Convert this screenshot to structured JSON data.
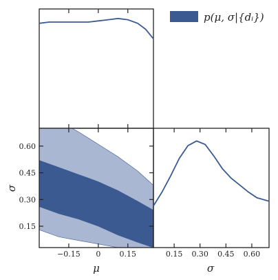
{
  "chart_data": [
    {
      "type": "line",
      "panel": "marginal-mu",
      "x_param": "mu",
      "xlim": [
        -0.3,
        0.28
      ],
      "ylim": [
        0,
        1.0
      ],
      "x": [
        -0.3,
        -0.25,
        -0.2,
        -0.15,
        -0.1,
        -0.05,
        0.0,
        0.05,
        0.1,
        0.15,
        0.2,
        0.24,
        0.28
      ],
      "y": [
        0.88,
        0.89,
        0.89,
        0.89,
        0.89,
        0.89,
        0.9,
        0.91,
        0.92,
        0.91,
        0.88,
        0.83,
        0.75
      ],
      "color": "#3b5a92"
    },
    {
      "type": "area",
      "panel": "joint-mu-sigma",
      "xlim": [
        -0.3,
        0.28
      ],
      "ylim": [
        0.03,
        0.7
      ],
      "xticks": [
        "−0.15",
        "0",
        "0.15"
      ],
      "xtick_values": [
        -0.15,
        0.0,
        0.15
      ],
      "yticks": [
        "0.15",
        "0.30",
        "0.45",
        "0.60"
      ],
      "ytick_values": [
        0.15,
        0.3,
        0.45,
        0.6
      ],
      "xlabel": "μ",
      "ylabel": "σ",
      "regions": [
        {
          "level": "outer",
          "color": "#a9b7d2",
          "upper": [
            [
              -0.3,
              0.78
            ],
            [
              -0.2,
              0.74
            ],
            [
              -0.1,
              0.68
            ],
            [
              0.0,
              0.61
            ],
            [
              0.1,
              0.54
            ],
            [
              0.2,
              0.46
            ],
            [
              0.28,
              0.38
            ]
          ],
          "lower": [
            [
              -0.3,
              0.13
            ],
            [
              -0.2,
              0.09
            ],
            [
              -0.1,
              0.07
            ],
            [
              0.0,
              0.05
            ],
            [
              0.1,
              0.03
            ],
            [
              0.15,
              0.02
            ]
          ]
        },
        {
          "level": "inner",
          "color": "#3b5a92",
          "upper": [
            [
              -0.3,
              0.52
            ],
            [
              -0.2,
              0.48
            ],
            [
              -0.1,
              0.44
            ],
            [
              0.0,
              0.4
            ],
            [
              0.1,
              0.35
            ],
            [
              0.2,
              0.29
            ],
            [
              0.28,
              0.24
            ]
          ],
          "lower": [
            [
              -0.3,
              0.26
            ],
            [
              -0.2,
              0.22
            ],
            [
              -0.1,
              0.19
            ],
            [
              0.0,
              0.15
            ],
            [
              0.1,
              0.1
            ],
            [
              0.2,
              0.06
            ],
            [
              0.28,
              0.03
            ]
          ]
        }
      ]
    },
    {
      "type": "line",
      "panel": "marginal-sigma",
      "x_param": "sigma",
      "xlim": [
        0.03,
        0.7
      ],
      "ylim": [
        0,
        1.0
      ],
      "xticks": [
        "0.15",
        "0.30",
        "0.45",
        "0.60"
      ],
      "xtick_values": [
        0.15,
        0.3,
        0.45,
        0.6
      ],
      "xlabel": "σ",
      "x": [
        0.03,
        0.08,
        0.13,
        0.18,
        0.23,
        0.28,
        0.33,
        0.38,
        0.43,
        0.48,
        0.53,
        0.58,
        0.63,
        0.7
      ],
      "y": [
        0.36,
        0.48,
        0.62,
        0.77,
        0.88,
        0.92,
        0.89,
        0.79,
        0.68,
        0.6,
        0.54,
        0.48,
        0.43,
        0.4
      ],
      "color": "#3b5a92"
    }
  ],
  "legend": {
    "label": "p(μ, σ|{dᵢ})",
    "color": "#3b5a92"
  }
}
